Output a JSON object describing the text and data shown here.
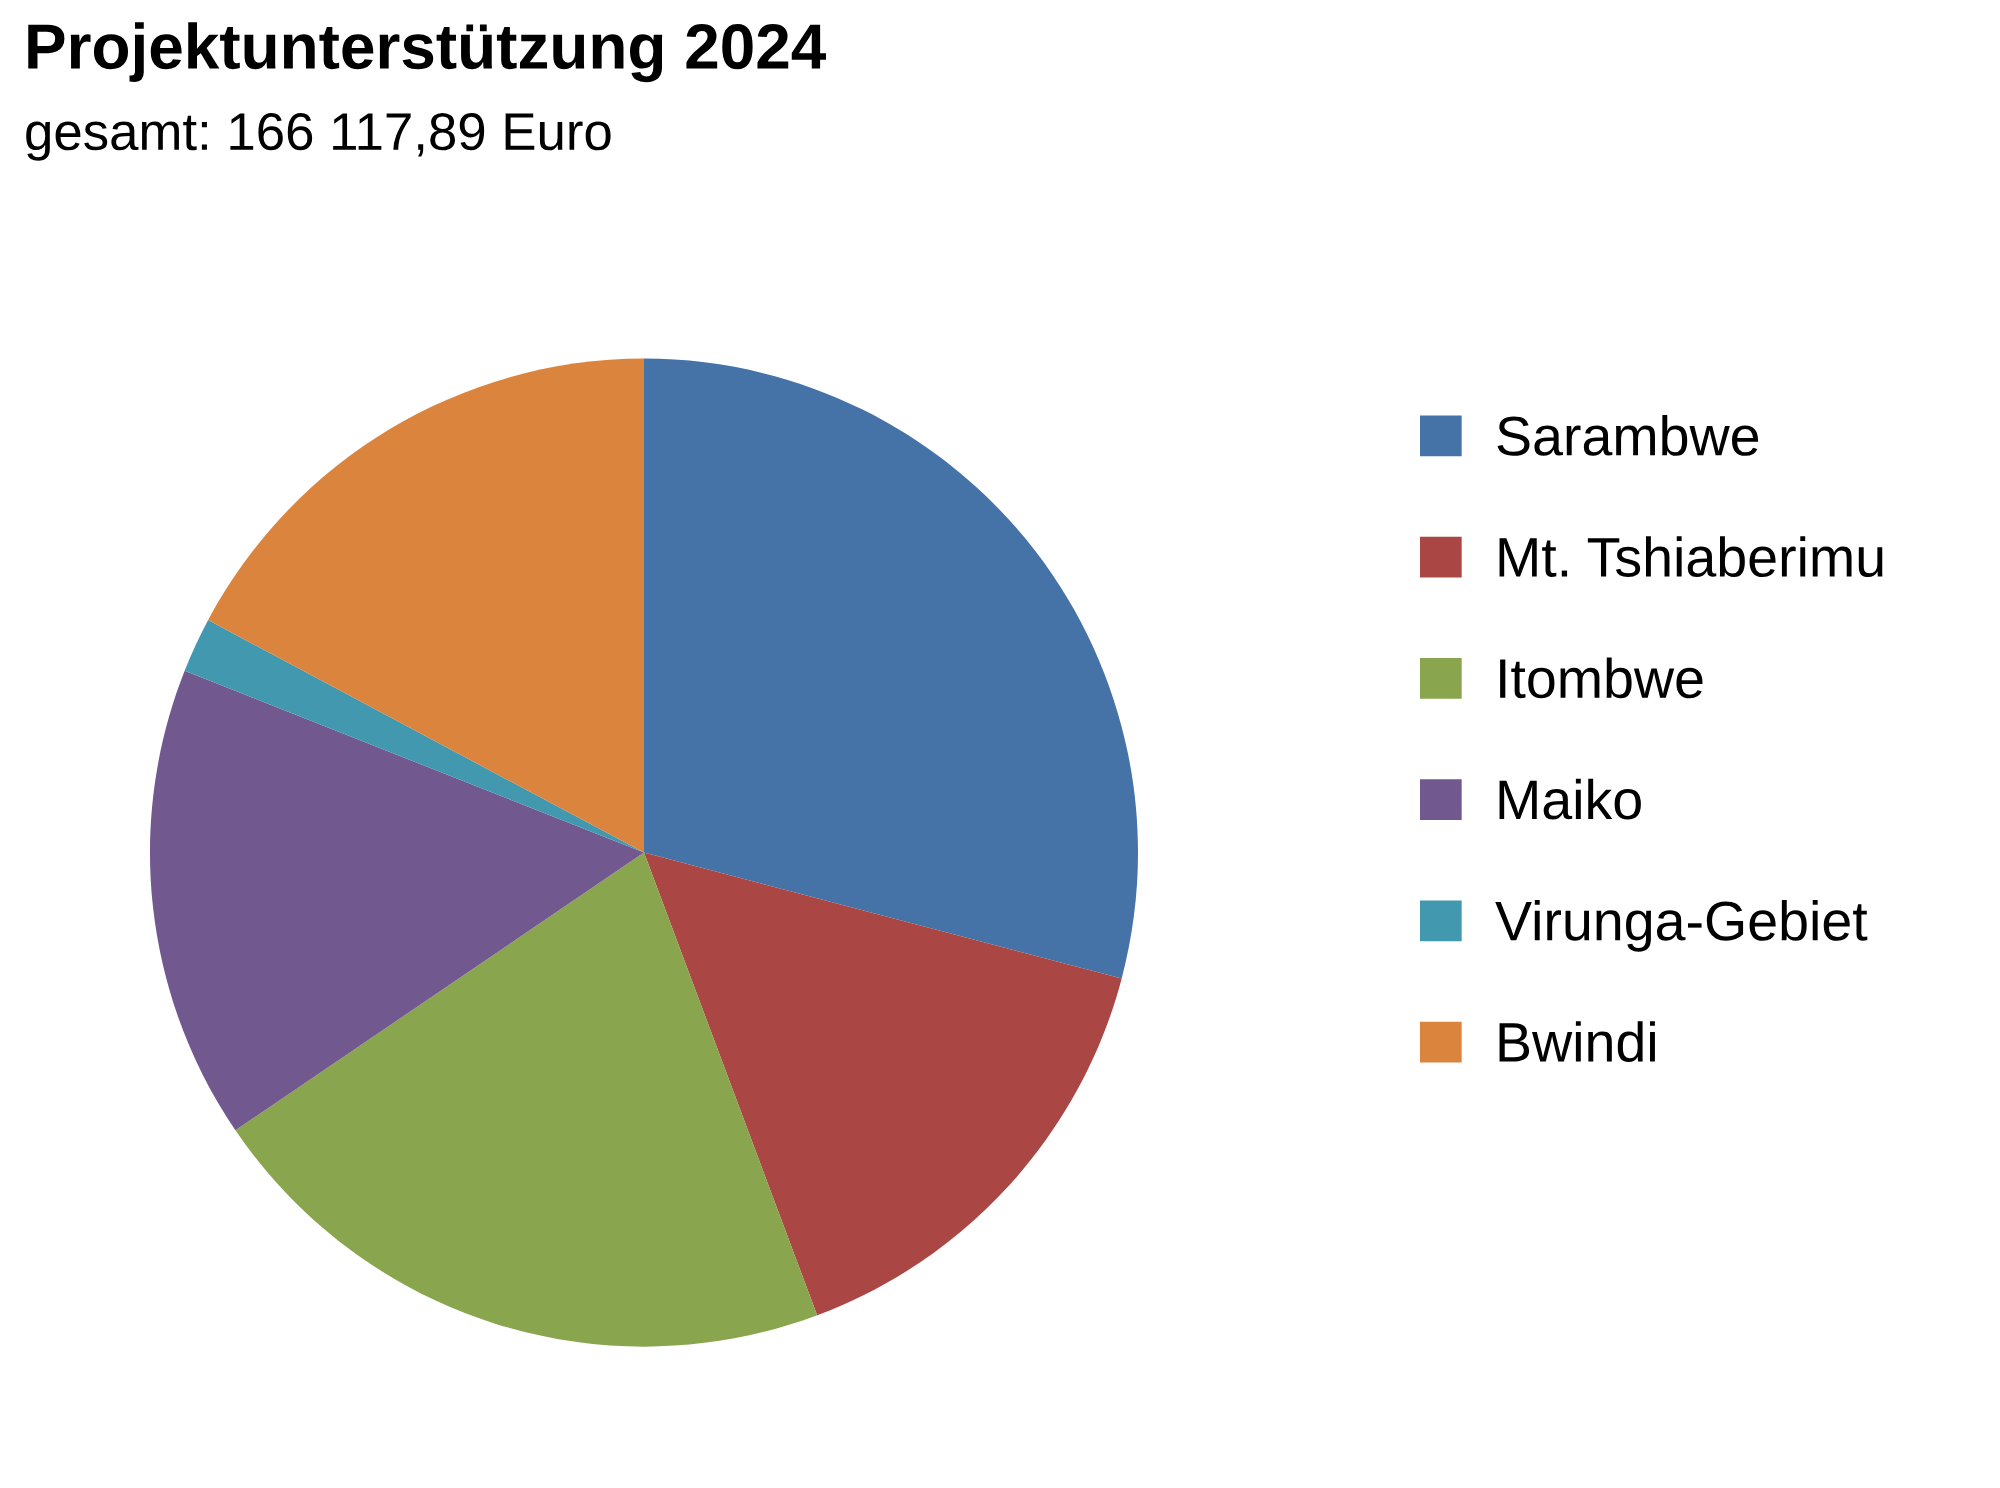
{
  "chart_data": {
    "type": "pie",
    "title": "Projektunterstützung 2024",
    "subtitle": "gesamt: 166 117,89 Euro",
    "categories": [
      "Sarambwe",
      "Mt. Tshiaberimu",
      "Itombwe",
      "Maiko",
      "Virunga-Gebiet",
      "Bwindi"
    ],
    "values": [
      29.1,
      15.2,
      21.2,
      15.5,
      1.8,
      17.2
    ],
    "colors": [
      "#4572a7",
      "#aa4643",
      "#89a54e",
      "#71588f",
      "#4198af",
      "#db843d"
    ],
    "legend": "right"
  }
}
